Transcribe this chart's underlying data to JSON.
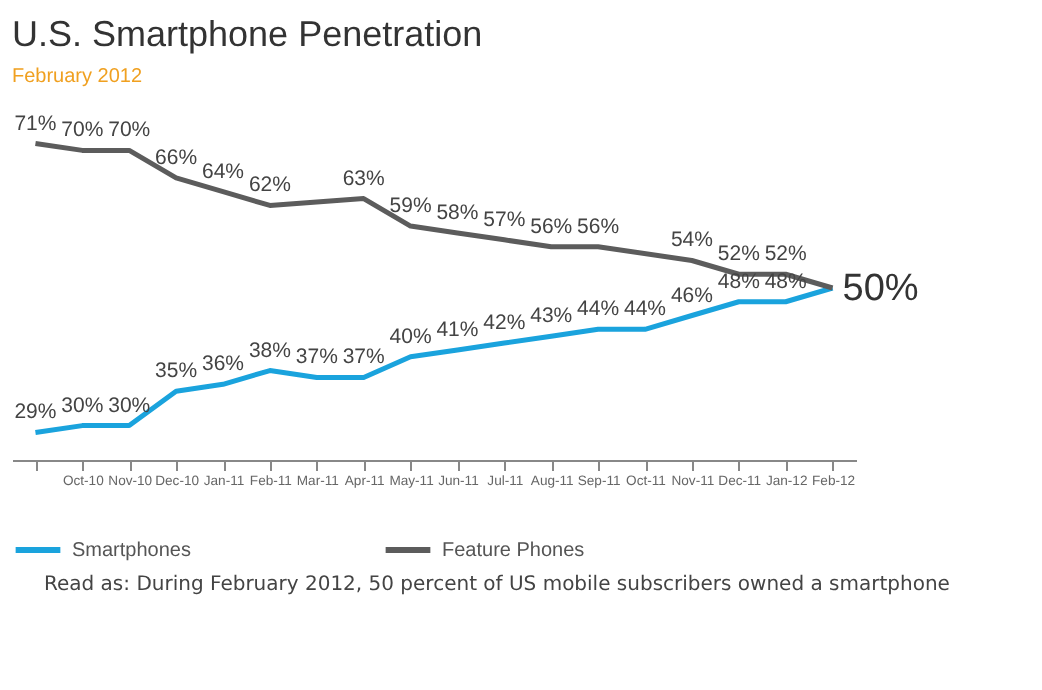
{
  "chart_data": {
    "type": "line",
    "title": "U.S. Smartphone Penetration",
    "subtitle": "February 2012",
    "categories": [
      null,
      "Oct-10",
      "Nov-10",
      "Dec-10",
      "Jan-11",
      "Feb-11",
      "Mar-11",
      "Apr-11",
      "May-11",
      "Jun-11",
      "Jul-11",
      "Aug-11",
      "Sep-11",
      "Oct-11",
      "Nov-11",
      "Dec-11",
      "Jan-12",
      "Feb-12"
    ],
    "series": [
      {
        "name": "Smartphones",
        "color": "#1aa3dd",
        "values": [
          29,
          30,
          30,
          35,
          36,
          38,
          37,
          37,
          40,
          41,
          42,
          43,
          44,
          44,
          46,
          48,
          48,
          50
        ],
        "value_labels": [
          "29%",
          "30%",
          "30%",
          "35%",
          "36%",
          "38%",
          "37%",
          "37%",
          "40%",
          "41%",
          "42%",
          "43%",
          "44%",
          "44%",
          "46%",
          "48%",
          "48%",
          "50%"
        ]
      },
      {
        "name": "Feature Phones",
        "color": "#5c5c5c",
        "values": [
          71,
          70,
          70,
          66,
          64,
          62,
          null,
          63,
          59,
          58,
          57,
          56,
          56,
          null,
          54,
          52,
          52,
          50
        ],
        "value_labels": [
          "71%",
          "70%",
          "70%",
          "66%",
          "64%",
          "62%",
          null,
          "63%",
          "59%",
          "58%",
          "57%",
          "56%",
          "56%",
          null,
          "54%",
          "52%",
          "52%",
          null
        ]
      }
    ],
    "legend": "bottom",
    "grid": false,
    "line_style": "solid",
    "marker": "none",
    "annotations": [
      "Read as: During February 2012, 50 percent of US mobile subscribers owned a smartphone"
    ]
  }
}
